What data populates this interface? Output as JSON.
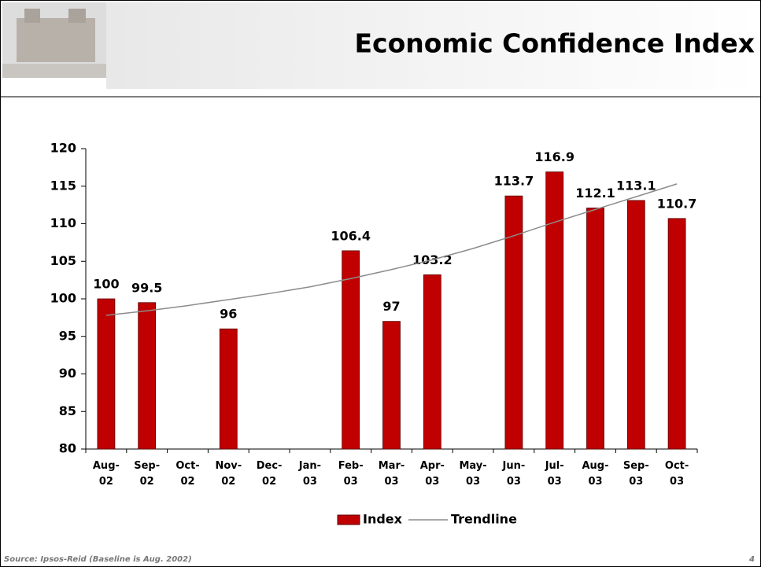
{
  "header": {
    "title": "Economic Confidence Index"
  },
  "chart_data": {
    "type": "bar",
    "categories": [
      "Aug-02",
      "Sep-02",
      "Oct-02",
      "Nov-02",
      "Dec-02",
      "Jan-03",
      "Feb-03",
      "Mar-03",
      "Apr-03",
      "May-03",
      "Jun-03",
      "Jul-03",
      "Aug-03",
      "Sep-03",
      "Oct-03"
    ],
    "series": [
      {
        "name": "Index",
        "color": "#c00000",
        "values": [
          100,
          99.5,
          null,
          96,
          null,
          null,
          106.4,
          97,
          103.2,
          null,
          113.7,
          116.9,
          112.1,
          113.1,
          110.7
        ]
      },
      {
        "name": "Trendline",
        "color": "#8c8c8c",
        "type": "line",
        "values": [
          97.8,
          98.4,
          99.1,
          99.9,
          100.7,
          101.6,
          102.7,
          103.9,
          105.2,
          106.7,
          108.4,
          110.2,
          111.9,
          113.6,
          115.3
        ]
      }
    ],
    "ylim": [
      80,
      120
    ],
    "yticks": [
      80,
      85,
      90,
      95,
      100,
      105,
      110,
      115,
      120
    ]
  },
  "footer": {
    "source": "Source: Ipsos-Reid (Baseline is Aug. 2002)",
    "page": "4"
  }
}
